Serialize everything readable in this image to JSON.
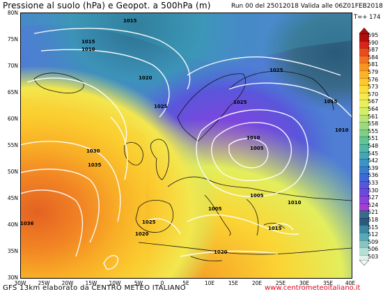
{
  "header": {
    "title": "Pressione al suolo (hPa) e Geopot. a 500hPa (m)",
    "run_info": "Run 00 del 25012018  Valida alle 06Z01FEB2018",
    "timestep": "T=+ 174"
  },
  "map": {
    "lat_labels": [
      "80N",
      "75N",
      "70N",
      "65N",
      "60N",
      "55N",
      "50N",
      "45N",
      "40N",
      "35N",
      "30N"
    ],
    "lon_labels": [
      "30W",
      "25W",
      "20W",
      "15W",
      "10W",
      "5W",
      "0",
      "5E",
      "10E",
      "15E",
      "20E",
      "25E",
      "30E",
      "35E",
      "40E"
    ],
    "isobar_labels": [
      "1015",
      "1015",
      "1010",
      "1020",
      "1025",
      "1025",
      "1025",
      "1015",
      "1010",
      "1030",
      "1035",
      "1010",
      "1005",
      "1005",
      "1005",
      "1010",
      "1036",
      "1025",
      "1020",
      "1015",
      "1020"
    ]
  },
  "colorbar": {
    "values": [
      "595",
      "590",
      "587",
      "584",
      "581",
      "579",
      "576",
      "573",
      "570",
      "567",
      "564",
      "561",
      "558",
      "555",
      "551",
      "548",
      "545",
      "542",
      "539",
      "536",
      "533",
      "530",
      "527",
      "524",
      "521",
      "518",
      "515",
      "512",
      "509",
      "506",
      "503"
    ],
    "colors": [
      "#b00d0d",
      "#d8241b",
      "#ec4a1d",
      "#f5711d",
      "#f9941f",
      "#fbb227",
      "#fcc82e",
      "#fbdc3a",
      "#f6e94d",
      "#e8ef5a",
      "#d4ee68",
      "#b8e573",
      "#9cda7d",
      "#7fcf87",
      "#62c393",
      "#4fb7a3",
      "#44a6b5",
      "#3c93c4",
      "#387ecf",
      "#3f68d6",
      "#5456db",
      "#6c49de",
      "#8a42dc",
      "#a53dd5",
      "#3a6a8a",
      "#2a5a7a",
      "#3c88a4",
      "#58a9b8",
      "#86c6c2",
      "#b6e0d4",
      "#e0f3ea"
    ]
  },
  "footer": {
    "left": "GFS 13km elaborato da CENTRO METEO ITALIANO",
    "right": "www.centrometeoitaliano.it"
  }
}
